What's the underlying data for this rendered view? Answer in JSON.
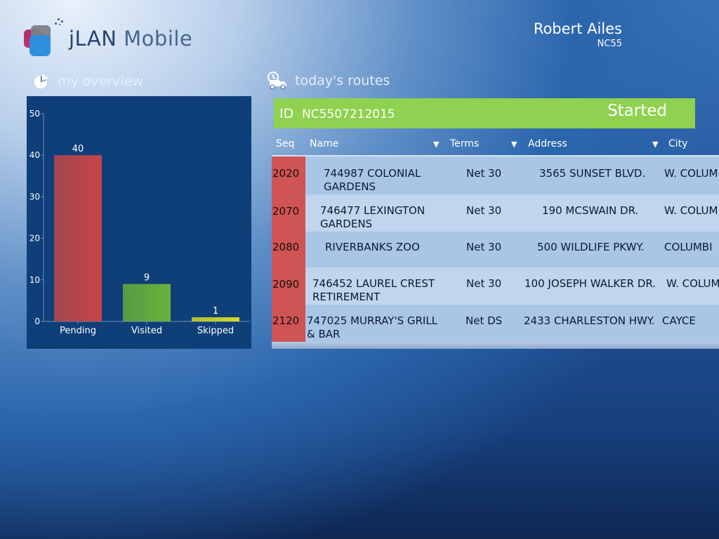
{
  "app": {
    "name_prefix": "jLAN",
    "name_suffix": "Mobile"
  },
  "user": {
    "name": "Robert Ailes",
    "code": "NC55"
  },
  "overview": {
    "title": "my overview"
  },
  "routes": {
    "title": "today's routes",
    "id_label": "ID",
    "id_value": "NC5507212015",
    "status": "Started",
    "columns": [
      "Seq",
      "Name",
      "Terms",
      "Address",
      "City"
    ],
    "rows": [
      {
        "seq": "2020",
        "name": [
          "744987 COLONIAL",
          "GARDENS"
        ],
        "terms": "Net 30",
        "address": "3565 SUNSET BLVD.",
        "city": "W. COLUM"
      },
      {
        "seq": "2070",
        "name": [
          "746477 LEXINGTON",
          "GARDENS"
        ],
        "terms": "Net 30",
        "address": "190 MCSWAIN DR.",
        "city": "W. COLUM"
      },
      {
        "seq": "2080",
        "name": [
          "RIVERBANKS ZOO"
        ],
        "terms": "Net 30",
        "address": "500 WILDLIFE PKWY.",
        "city": "COLUMBI"
      },
      {
        "seq": "2090",
        "name": [
          "746452 LAUREL CREST",
          "RETIREMENT"
        ],
        "terms": "Net 30",
        "address": "100 JOSEPH WALKER DR.",
        "city": "W. COLUM"
      },
      {
        "seq": "2120",
        "name": [
          "747025 MURRAY'S GRILL",
          "& BAR"
        ],
        "terms": "Net DS",
        "address": "2433 CHARLESTON HWY.",
        "city": "CAYCE"
      }
    ]
  },
  "chart_data": {
    "type": "bar",
    "categories": [
      "Pending",
      "Visited",
      "Skipped"
    ],
    "values": [
      40,
      9,
      1
    ],
    "ylim": [
      0,
      50
    ],
    "yticks": [
      0,
      10,
      20,
      30,
      40,
      50
    ],
    "colors": [
      "#c74646",
      "#6ab23a",
      "#d6dc1e"
    ]
  }
}
